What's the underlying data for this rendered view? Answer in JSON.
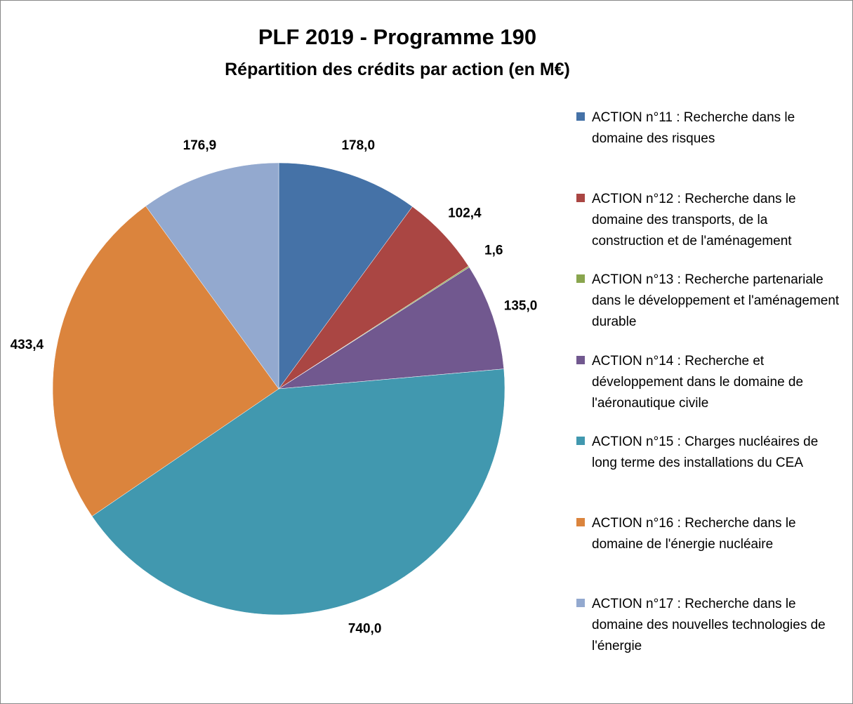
{
  "chart_data": {
    "type": "pie",
    "title": "PLF 2019 - Programme 190",
    "subtitle": "Répartition des crédits par action (en M€)",
    "categories": [
      "ACTION n°11 : Recherche dans le domaine des risques",
      "ACTION n°12 : Recherche dans le domaine des transports, de la construction et de l'aménagement",
      "ACTION n°13 : Recherche partenariale dans le développement et l'aménagement durable",
      "ACTION n°14 : Recherche et développement dans le domaine de l'aéronautique civile",
      "ACTION n°15 : Charges nucléaires de long terme des installations du CEA",
      "ACTION n°16 : Recherche dans le domaine de l'énergie nucléaire",
      "ACTION n°17 : Recherche dans le domaine des nouvelles technologies de l'énergie"
    ],
    "values": [
      178.0,
      102.4,
      1.6,
      135.0,
      740.0,
      433.4,
      176.9
    ],
    "value_labels": [
      "178,0",
      "102,4",
      "1,6",
      "135,0",
      "740,0",
      "433,4",
      "176,9"
    ],
    "colors": [
      "#4572a7",
      "#aa4643",
      "#89a54e",
      "#71588f",
      "#4198af",
      "#db843d",
      "#93a9cf"
    ],
    "legend": "right"
  }
}
